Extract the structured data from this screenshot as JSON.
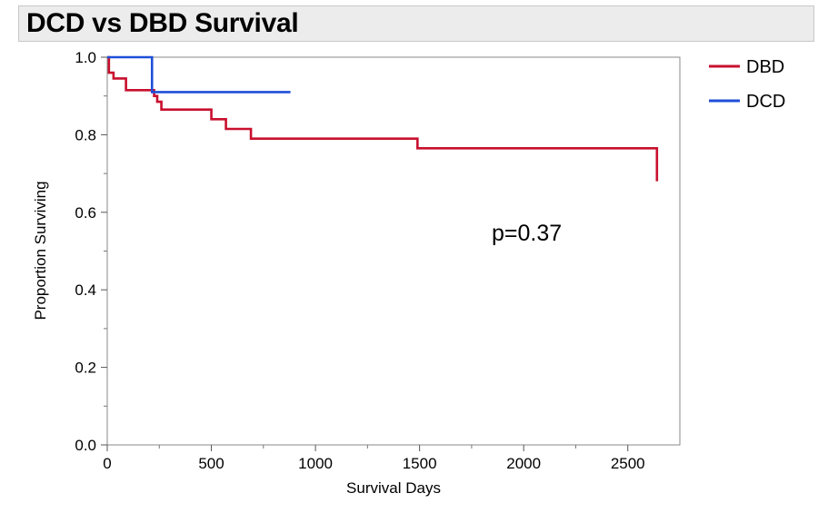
{
  "chart_data": {
    "type": "line",
    "title": "DCD vs DBD Survival",
    "xlabel": "Survival Days",
    "ylabel": "Proportion Surviving",
    "xlim": [
      0,
      2750
    ],
    "ylim": [
      0,
      1.0
    ],
    "x_ticks": [
      0,
      500,
      1000,
      1500,
      2000,
      2500
    ],
    "x_tick_labels": [
      "0",
      "500",
      "1000",
      "1500",
      "2000",
      "2500"
    ],
    "y_ticks": [
      0,
      0.2,
      0.4,
      0.6,
      0.8,
      1.0
    ],
    "y_tick_labels": [
      "0.0",
      "0.2",
      "0.4",
      "0.6",
      "0.8",
      "1.0"
    ],
    "grid": false,
    "legend_position": "top-right outside",
    "annotation": "p=0.37",
    "series": [
      {
        "name": "DBD",
        "color": "#c8102e",
        "step": true,
        "x": [
          0,
          8,
          30,
          90,
          200,
          225,
          240,
          260,
          500,
          570,
          690,
          1490,
          2640
        ],
        "y": [
          1.0,
          0.96,
          0.945,
          0.915,
          0.915,
          0.9,
          0.885,
          0.865,
          0.84,
          0.815,
          0.79,
          0.765,
          0.68
        ]
      },
      {
        "name": "DCD",
        "color": "#1f4fd8",
        "step": true,
        "x": [
          0,
          215,
          880
        ],
        "y": [
          1.0,
          0.91,
          0.91
        ]
      }
    ]
  }
}
